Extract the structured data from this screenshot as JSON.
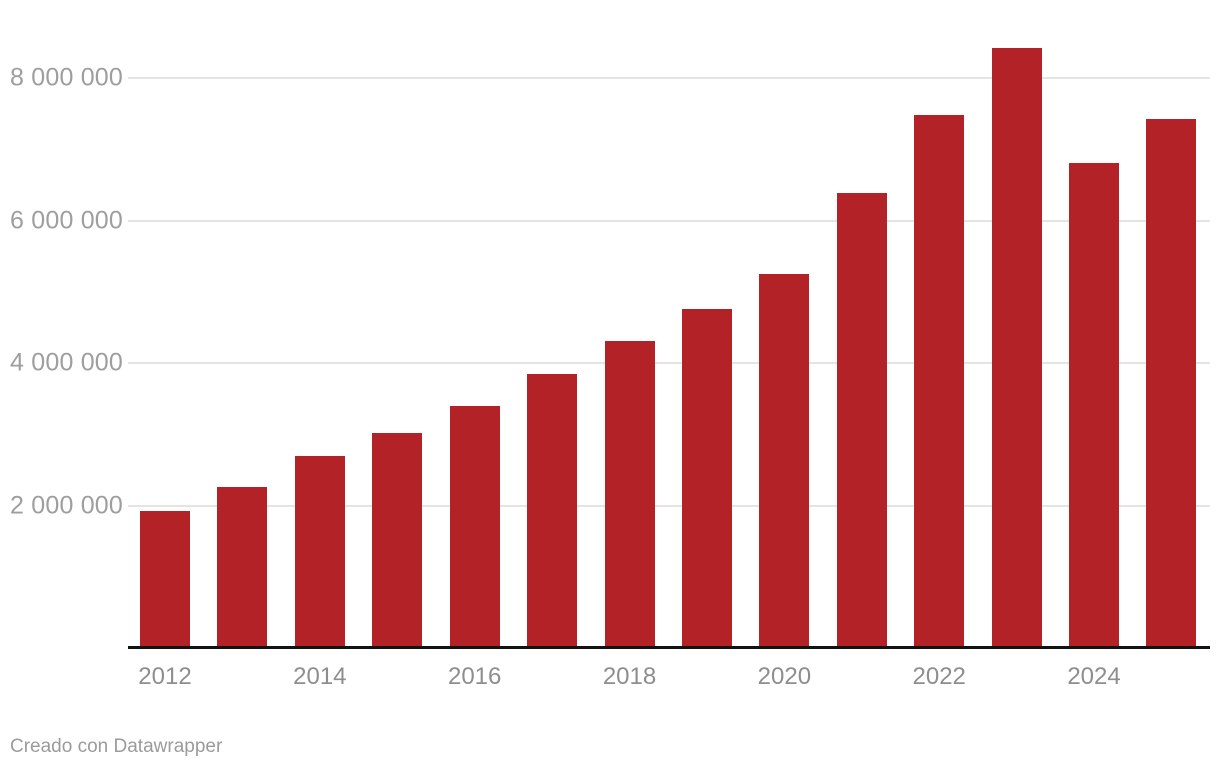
{
  "footer": {
    "attribution": "Creado con Datawrapper"
  },
  "colors": {
    "bar": "#b22226",
    "gridline": "#e4e4e4",
    "axis_line": "#121212",
    "y_label_text": "#9e9e9e",
    "x_label_text": "#8e8e8e",
    "footer_text": "#9b9b9b",
    "background": "#ffffff"
  },
  "chart_data": {
    "type": "bar",
    "title": "",
    "xlabel": "",
    "ylabel": "",
    "categories": [
      "2012",
      "2013",
      "2014",
      "2015",
      "2016",
      "2017",
      "2018",
      "2019",
      "2020",
      "2021",
      "2022",
      "2023",
      "2024",
      "2025"
    ],
    "values": [
      1920000,
      2260000,
      2690000,
      3020000,
      3400000,
      3850000,
      4310000,
      4760000,
      5250000,
      6390000,
      7480000,
      8420000,
      6810000,
      7420000
    ],
    "ylim": [
      0,
      8600000
    ],
    "y_ticks": [
      {
        "value": 2000000,
        "label": "2 000 000"
      },
      {
        "value": 4000000,
        "label": "4 000 000"
      },
      {
        "value": 6000000,
        "label": "6 000 000"
      },
      {
        "value": 8000000,
        "label": "8 000 000"
      }
    ],
    "x_tick_labels": [
      "2012",
      "2014",
      "2016",
      "2018",
      "2020",
      "2022",
      "2024"
    ],
    "grid": "horizontal-only",
    "legend": "none"
  }
}
